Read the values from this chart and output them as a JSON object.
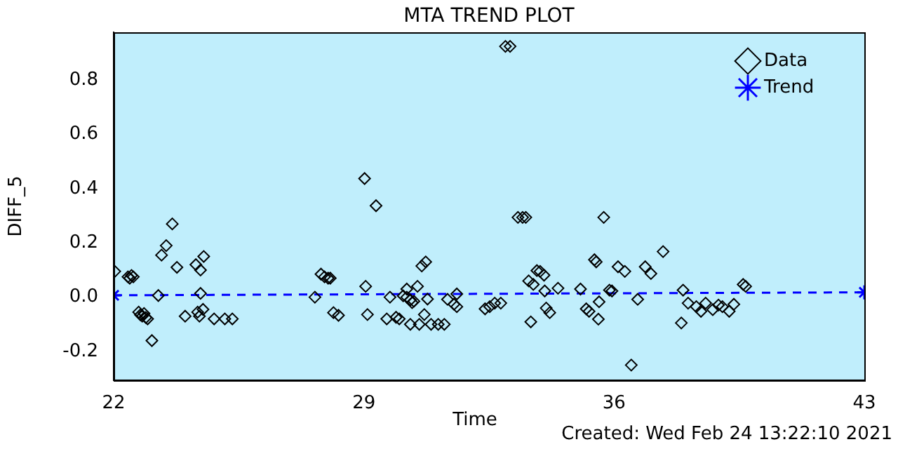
{
  "chart_data": {
    "type": "scatter",
    "title": "MTA TREND PLOT",
    "xlabel": "Time",
    "ylabel": "DIFF_5",
    "annotations": [
      "Created: Wed Feb 24 13:22:10 2021"
    ],
    "xlim": [
      22,
      43
    ],
    "xticks": [
      22,
      29,
      36,
      43
    ],
    "ylim": [
      -0.306,
      0.976
    ],
    "yticks": [
      -0.2,
      {
        "value": 0,
        "label": "0.0"
      },
      0.2,
      0.4,
      0.6,
      0.8
    ],
    "grid": false,
    "legend": "top right",
    "series": [
      {
        "name": "Data",
        "color": "#000000",
        "marker": "diamond",
        "x": [
          22.03,
          22.4,
          22.45,
          22.5,
          22.55,
          22.7,
          22.75,
          22.8,
          22.85,
          22.9,
          22.95,
          23.07,
          23.25,
          23.34,
          23.47,
          23.64,
          23.77,
          24.0,
          24.3,
          24.43,
          24.52,
          24.43,
          24.35,
          24.4,
          24.5,
          24.81,
          25.11,
          25.32,
          27.63,
          27.8,
          27.9,
          28.0,
          28.06,
          28.15,
          28.29,
          29.02,
          29.05,
          29.1,
          29.34,
          29.73,
          29.64,
          29.9,
          29.99,
          30.1,
          30.2,
          30.3,
          30.4,
          30.2,
          30.5,
          30.35,
          30.3,
          30.55,
          30.62,
          30.73,
          30.69,
          30.78,
          30.88,
          31.08,
          31.25,
          31.34,
          31.52,
          31.6,
          31.6,
          32.39,
          32.52,
          32.66,
          32.83,
          32.96,
          33.09,
          33.31,
          33.44,
          33.53,
          33.67,
          33.61,
          33.74,
          33.84,
          33.93,
          34.04,
          34.06,
          34.43,
          34.1,
          34.2,
          35.06,
          35.22,
          35.3,
          35.45,
          35.5,
          35.58,
          35.56,
          35.71,
          35.87,
          35.94,
          36.11,
          36.3,
          36.66,
          36.48,
          36.87,
          37.03,
          37.37,
          37.93,
          37.88,
          38.07,
          38.3,
          38.43,
          38.56,
          38.76,
          38.92,
          39.03,
          39.22,
          39.35,
          39.61,
          39.68
        ],
        "values": [
          0.095,
          0.075,
          0.07,
          0.08,
          0.075,
          -0.055,
          -0.065,
          -0.07,
          -0.06,
          -0.075,
          -0.08,
          -0.16,
          0.006,
          0.155,
          0.19,
          0.27,
          0.11,
          -0.07,
          0.12,
          0.1,
          0.15,
          0.014,
          -0.055,
          -0.07,
          -0.045,
          -0.08,
          -0.08,
          -0.08,
          0.0,
          0.085,
          0.075,
          0.07,
          0.07,
          -0.057,
          -0.067,
          0.437,
          0.04,
          -0.064,
          0.337,
          0.0,
          -0.08,
          -0.074,
          -0.08,
          0.005,
          0.0,
          -0.01,
          -0.015,
          0.03,
          0.04,
          -0.02,
          -0.1,
          -0.1,
          0.115,
          0.13,
          -0.064,
          -0.007,
          -0.1,
          -0.1,
          -0.1,
          -0.008,
          -0.026,
          -0.035,
          0.012,
          -0.043,
          -0.035,
          -0.022,
          -0.022,
          0.924,
          0.924,
          0.294,
          0.294,
          0.294,
          -0.091,
          0.06,
          0.047,
          0.098,
          0.095,
          0.081,
          0.023,
          0.033,
          -0.04,
          -0.057,
          0.03,
          -0.043,
          -0.052,
          0.138,
          0.13,
          -0.017,
          -0.081,
          0.294,
          0.026,
          0.023,
          0.112,
          0.095,
          -0.008,
          -0.25,
          0.112,
          0.087,
          0.168,
          0.026,
          -0.095,
          -0.022,
          -0.035,
          -0.052,
          -0.022,
          -0.046,
          -0.029,
          -0.035,
          -0.052,
          -0.026,
          0.047,
          0.04
        ]
      },
      {
        "name": "Trend",
        "type": "line",
        "color": "#0000ff",
        "marker": "cross",
        "line_style": "dashed",
        "x": [
          22,
          43
        ],
        "values": [
          0.007,
          0.018
        ]
      }
    ]
  }
}
